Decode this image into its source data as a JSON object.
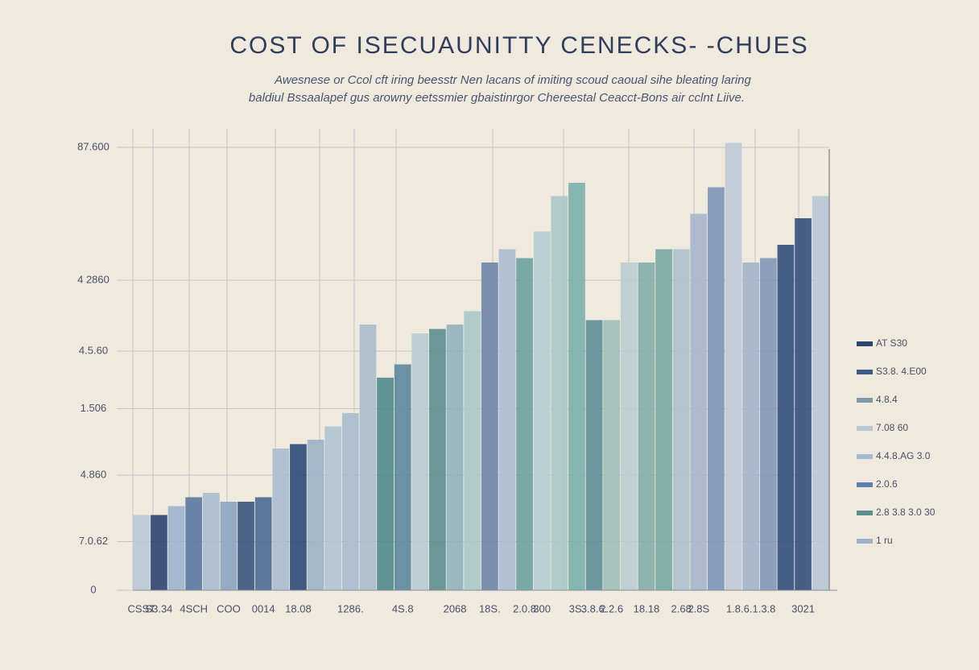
{
  "chart_data": {
    "type": "bar",
    "title": "COST OF ISECUAUNITTY CENECKS- -CHUES",
    "subtitle": [
      "Awesnese or Ccol cft iring beesstr Nen lacans of imiting scoud caoual sihe bleating laring",
      "baldiul Bssaalapef gus arowny eetssmier gbaistinrgor Chereestal Ceacct-Bons air cclnt Liive."
    ],
    "categories": [
      "CSST",
      "S3.34",
      null,
      "4SCH",
      null,
      "COO",
      null,
      "0014",
      null,
      "18.08",
      null,
      null,
      "1286.",
      null,
      null,
      "4S.8",
      null,
      null,
      "2068",
      null,
      "18S.",
      null,
      "2.0.8",
      "300",
      null,
      "3S.",
      "3.8.6.",
      "2.2.6",
      null,
      "18.18",
      null,
      "2.68",
      "2.8S",
      null,
      null,
      "1.8.6.1.3.8",
      null,
      null,
      "3021",
      null
    ],
    "values": [
      17,
      17,
      19,
      21,
      22,
      20,
      20,
      21,
      32,
      33,
      34,
      37,
      40,
      60,
      48,
      51,
      58,
      59,
      60,
      63,
      74,
      77,
      75,
      81,
      89,
      92,
      61,
      61,
      74,
      74,
      77,
      77,
      85,
      91,
      101,
      74,
      75,
      78,
      84,
      89
    ],
    "colors": [
      "#b8c8d8",
      "#2e4470",
      "#9db4cc",
      "#5a78a0",
      "#a9bdd0",
      "#8aa4c0",
      "#3b5580",
      "#4d6a94",
      "#a8bdd0",
      "#2d4a78",
      "#9cb3c8",
      "#b0c4d4",
      "#a7bccf",
      "#a9bece",
      "#4f8a8c",
      "#5b87a0",
      "#b7ccd4",
      "#5c8f8e",
      "#8fb3bb",
      "#a8c8c8",
      "#6f86a8",
      "#a9bdd2",
      "#6ca3a0",
      "#b5cdd2",
      "#a8c8c6",
      "#7ab0ab",
      "#5d8e9a",
      "#9ebfb8",
      "#b9ccd0",
      "#84aeaa",
      "#79a8a0",
      "#abc0cc",
      "#a6b5cc",
      "#7c93b8",
      "#bfcbd8",
      "#a2b4ca",
      "#7f96b6",
      "#33507c",
      "#34507a",
      "#b9c6d8"
    ],
    "ylim": [
      0,
      105
    ],
    "yticks": [
      0,
      {
        "value": 11,
        "label": "7.0.62"
      },
      {
        "value": 26,
        "label": "4.860"
      },
      {
        "value": 41,
        "label": "1.506"
      },
      {
        "value": 54,
        "label": "4.5.60"
      },
      {
        "value": 70,
        "label": "4 2860"
      },
      {
        "value": 100,
        "label": "87.600"
      }
    ],
    "grid": true,
    "legend": [
      {
        "label": "AT S30",
        "color": "#2e4470"
      },
      {
        "label": "S3.8. 4.E00",
        "color": "#3b5a8a"
      },
      {
        "label": "4.8.4",
        "color": "#7f9aa6"
      },
      {
        "label": "7.08 60",
        "color": "#b7c7d6"
      },
      {
        "label": "4.4.8.AG 3.0",
        "color": "#a4bccf"
      },
      {
        "label": "2.0.6",
        "color": "#5f7fae"
      },
      {
        "label": "2.8 3.8 3.0 30",
        "color": "#5d8f8e"
      },
      {
        "label": "1 ru",
        "color": "#9fb0c2"
      }
    ],
    "legend_position": "right"
  }
}
